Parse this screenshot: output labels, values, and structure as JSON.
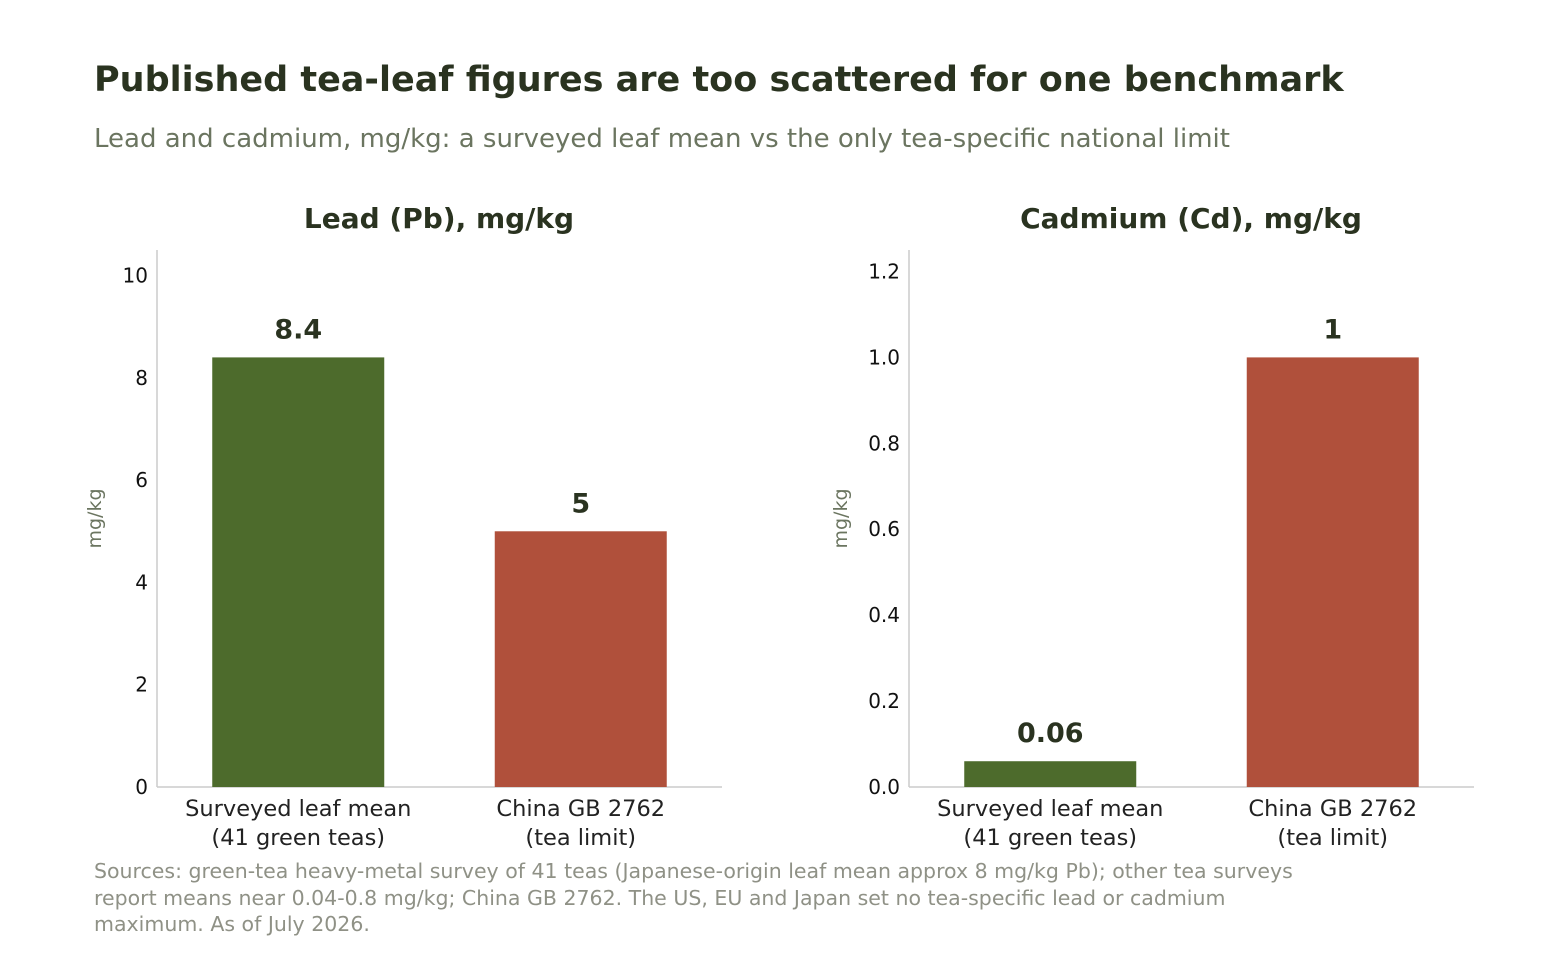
{
  "title": "Published tea-leaf figures are too scattered for one benchmark",
  "subtitle": "Lead and cadmium, mg/kg: a surveyed leaf mean vs the only tea-specific national limit",
  "footnote": "Sources: green-tea heavy-metal survey of 41 teas (Japanese-origin leaf mean approx 8 mg/kg Pb); other tea surveys report means near 0.04-0.8 mg/kg; China GB 2762. The US, EU and Japan set no tea-specific lead or cadmium maximum. As of July 2026.",
  "colors": {
    "survey": "#4d6b2c",
    "limit": "#b0503b",
    "title_text": "#2a3320",
    "subtitle_text": "#6b7560",
    "footnote_text": "#8f9186",
    "axis": "#cccccc"
  },
  "chart_data": [
    {
      "type": "bar",
      "title": "Lead (Pb), mg/kg",
      "ylabel": "mg/kg",
      "ylim": [
        0,
        10.5
      ],
      "yticks": [
        0,
        2,
        4,
        6,
        8,
        10
      ],
      "tick_decimals": 0,
      "categories": [
        [
          "Surveyed leaf mean",
          "(41 green teas)"
        ],
        [
          "China GB 2762",
          "(tea limit)"
        ]
      ],
      "values": [
        8.4,
        5
      ],
      "value_labels": [
        "8.4",
        "5"
      ],
      "bar_colors": [
        "#4d6b2c",
        "#b0503b"
      ],
      "grid": false,
      "legend": "none"
    },
    {
      "type": "bar",
      "title": "Cadmium (Cd), mg/kg",
      "ylabel": "mg/kg",
      "ylim": [
        0,
        1.25
      ],
      "yticks": [
        0.0,
        0.2,
        0.4,
        0.6,
        0.8,
        1.0,
        1.2
      ],
      "tick_decimals": 1,
      "categories": [
        [
          "Surveyed leaf mean",
          "(41 green teas)"
        ],
        [
          "China GB 2762",
          "(tea limit)"
        ]
      ],
      "values": [
        0.06,
        1
      ],
      "value_labels": [
        "0.06",
        "1"
      ],
      "bar_colors": [
        "#4d6b2c",
        "#b0503b"
      ],
      "grid": false,
      "legend": "none"
    }
  ]
}
